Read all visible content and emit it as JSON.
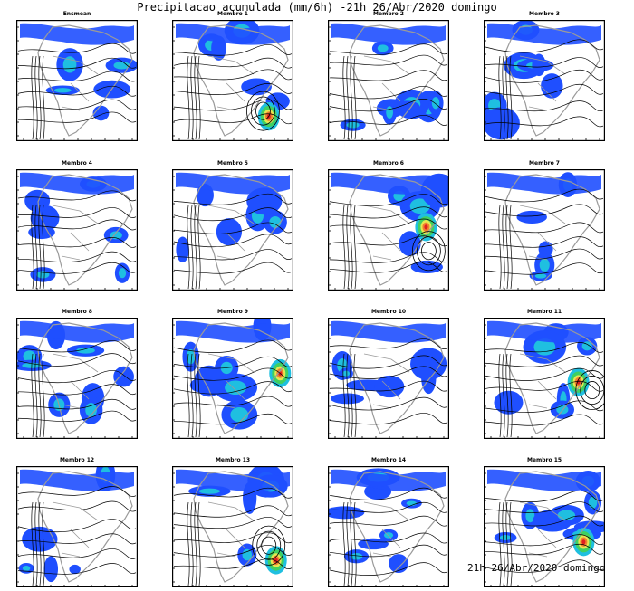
{
  "title": "Precipitacao acumulada (mm/6h) -21h 26/Abr/2020 domingo",
  "footer": "21h 26/Abr/2020 domingo",
  "colors": {
    "shade_light": "#b4b4ff",
    "shade_blue": "#1f4fff",
    "shade_cyan": "#1fbfe0",
    "shade_green": "#40d060",
    "shade_yellow": "#e6e650",
    "shade_orange": "#f08030",
    "shade_red": "#e02020",
    "contour": "#000000",
    "coast": "#9a9a9a"
  },
  "panels": [
    {
      "label": "Ensmean"
    },
    {
      "label": "Membro 1"
    },
    {
      "label": "Membro 2"
    },
    {
      "label": "Membro 3"
    },
    {
      "label": "Membro 4"
    },
    {
      "label": "Membro 5"
    },
    {
      "label": "Membro 6"
    },
    {
      "label": "Membro 7"
    },
    {
      "label": "Membro 8"
    },
    {
      "label": "Membro 9"
    },
    {
      "label": "Membro 10"
    },
    {
      "label": "Membro 11"
    },
    {
      "label": "Membro 12"
    },
    {
      "label": "Membro 13"
    },
    {
      "label": "Membro 14"
    },
    {
      "label": "Membro 15"
    }
  ]
}
